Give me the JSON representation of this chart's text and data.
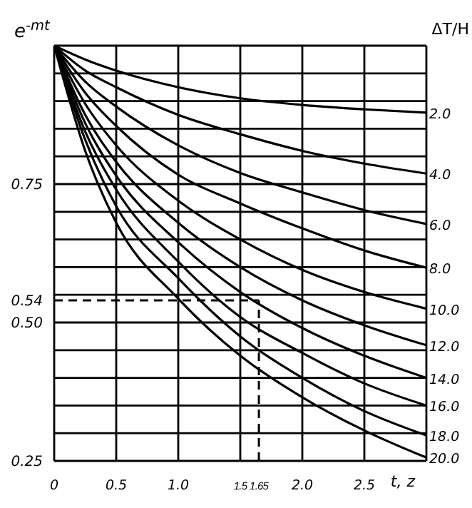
{
  "chart_data": {
    "type": "line",
    "ylabel": "e$^{-mt}$",
    "xlabel": "t, z",
    "legend_title": "ΔT/H",
    "x": [
      0,
      0.25,
      0.5,
      1,
      1.5,
      2,
      2.5,
      3
    ],
    "xlim": [
      0,
      3
    ],
    "ylim": [
      0.25,
      1
    ],
    "xticks": [
      0,
      0.5,
      {
        "value": 1,
        "label": "1.0"
      },
      1.5,
      1.65,
      {
        "value": 2,
        "label": "2.0"
      },
      2.5,
      {
        "value": 3,
        "label": null
      }
    ],
    "yticks": [
      0.25,
      {
        "value": 0.3,
        "label": null
      },
      {
        "value": 0.35,
        "label": null
      },
      {
        "value": 0.4,
        "label": null
      },
      {
        "value": 0.45,
        "label": null
      },
      {
        "value": 0.5,
        "label": "0.50"
      },
      0.54,
      {
        "value": 0.55,
        "label": null
      },
      {
        "value": 0.6,
        "label": null
      },
      {
        "value": 0.65,
        "label": null
      },
      {
        "value": 0.7,
        "label": null
      },
      0.75,
      {
        "value": 0.8,
        "label": null
      },
      {
        "value": 0.85,
        "label": null
      },
      {
        "value": 0.9,
        "label": null
      },
      {
        "value": 0.95,
        "label": null
      },
      {
        "value": 1,
        "label": null
      }
    ],
    "grid": true,
    "marker": "none",
    "line_style": "solid",
    "ref_lines": [
      {
        "axis": "x",
        "value": 1.65,
        "line_style": "dashed",
        "color": "#000000"
      },
      {
        "axis": "y",
        "value": 0.54,
        "line_style": "dashed",
        "color": "#000000"
      }
    ],
    "series": [
      {
        "name": "2.0",
        "color": "#000000",
        "values": [
          1,
          0.975,
          0.955,
          0.925,
          0.905,
          0.893,
          0.885,
          0.879
        ]
      },
      {
        "name": "4.0",
        "color": "#000000",
        "values": [
          1,
          0.955,
          0.925,
          0.875,
          0.84,
          0.81,
          0.787,
          0.769
        ]
      },
      {
        "name": "6.0",
        "color": "#000000",
        "values": [
          1,
          0.935,
          0.89,
          0.82,
          0.77,
          0.735,
          0.703,
          0.678
        ]
      },
      {
        "name": "8.0",
        "color": "#000000",
        "values": [
          1,
          0.915,
          0.855,
          0.767,
          0.715,
          0.67,
          0.63,
          0.599
        ]
      },
      {
        "name": "10.0",
        "color": "#000000",
        "values": [
          1,
          0.895,
          0.82,
          0.72,
          0.65,
          0.595,
          0.555,
          0.525
        ]
      },
      {
        "name": "12.0",
        "color": "#000000",
        "values": [
          1,
          0.875,
          0.79,
          0.68,
          0.6,
          0.54,
          0.495,
          0.459
        ]
      },
      {
        "name": "14.0",
        "color": "#000000",
        "values": [
          1,
          0.86,
          0.765,
          0.645,
          0.555,
          0.49,
          0.44,
          0.4
        ]
      },
      {
        "name": "16.0",
        "color": "#000000",
        "values": [
          1,
          0.845,
          0.74,
          0.61,
          0.51,
          0.445,
          0.39,
          0.35
        ]
      },
      {
        "name": "18.0",
        "color": "#000000",
        "values": [
          1,
          0.83,
          0.71,
          0.58,
          0.475,
          0.4,
          0.34,
          0.296
        ]
      },
      {
        "name": "20.0",
        "color": "#000000",
        "values": [
          1,
          0.81,
          0.68,
          0.543,
          0.44,
          0.365,
          0.305,
          0.256
        ]
      }
    ]
  }
}
